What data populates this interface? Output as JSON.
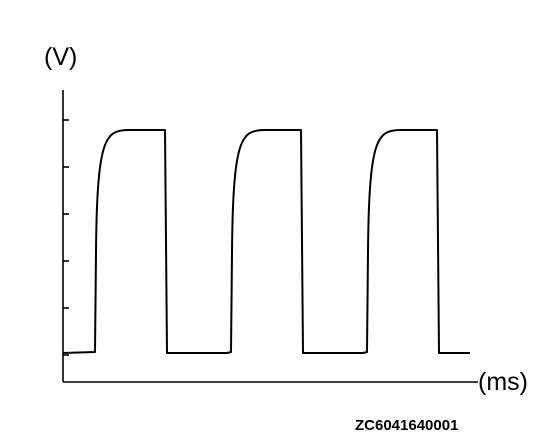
{
  "chart_data": {
    "type": "line",
    "title": "",
    "ylabel": "(V)",
    "xlabel": "(ms)",
    "y_ticks": 6,
    "grid": false,
    "legend": "none",
    "series": [
      {
        "style": "square-wave",
        "periods": 3,
        "low_level": 0,
        "high_level": 5,
        "rise_shape": "rounded"
      }
    ]
  },
  "figure_code": "ZC6041640001",
  "colors": {
    "line": "#000000",
    "background": "#ffffff"
  }
}
